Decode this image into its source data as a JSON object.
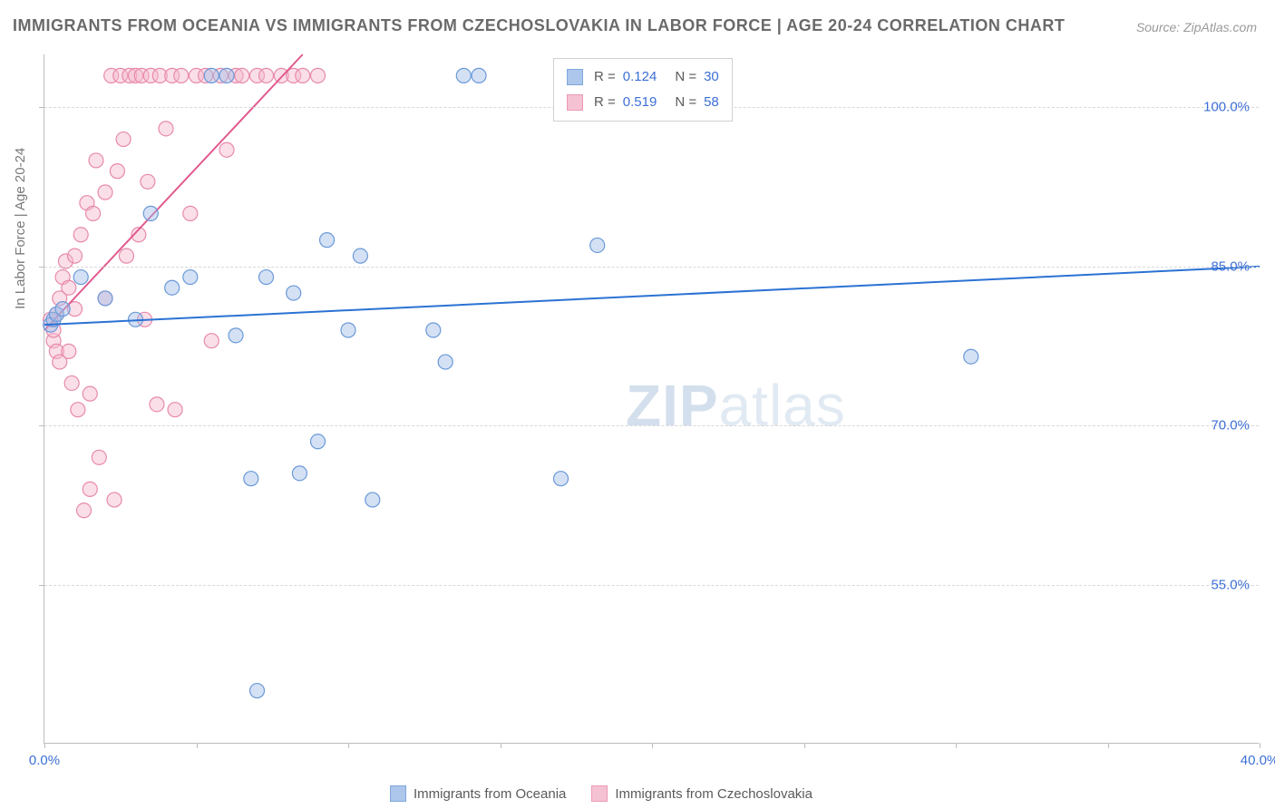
{
  "title": "IMMIGRANTS FROM OCEANIA VS IMMIGRANTS FROM CZECHOSLOVAKIA IN LABOR FORCE | AGE 20-24 CORRELATION CHART",
  "source": "Source: ZipAtlas.com",
  "ylabel": "In Labor Force | Age 20-24",
  "watermark": {
    "zip": "ZIP",
    "atlas": "atlas"
  },
  "chart": {
    "type": "scatter",
    "background_color": "#ffffff",
    "grid_color": "#d8d8d8",
    "border_color": "#bdbdbd",
    "xlim": [
      0,
      40
    ],
    "ylim": [
      40,
      105
    ],
    "xticks": [
      0,
      5,
      10,
      15,
      20,
      25,
      30,
      35,
      40
    ],
    "xtick_labels": {
      "0": "0.0%",
      "40": "40.0%"
    },
    "yticks": [
      55,
      70,
      85,
      100
    ],
    "ytick_labels": {
      "55": "55.0%",
      "70": "70.0%",
      "85": "85.0%",
      "100": "100.0%"
    },
    "marker_radius": 8,
    "marker_opacity": 0.45,
    "line_width": 2,
    "label_fontsize": 15,
    "tick_color": "#3d6fd6"
  },
  "series": {
    "oceania": {
      "label": "Immigrants from Oceania",
      "color_fill": "#9fbde8",
      "color_stroke": "#6a99d8",
      "trend_color": "#2b72d4",
      "r": "0.124",
      "n": "30",
      "trend": {
        "x1": 0,
        "y1": 79.5,
        "x2": 40,
        "y2": 85.0
      },
      "points": [
        [
          0.2,
          79.5
        ],
        [
          0.3,
          80.0
        ],
        [
          0.4,
          80.5
        ],
        [
          0.6,
          81.0
        ],
        [
          1.2,
          84.0
        ],
        [
          2.0,
          82.0
        ],
        [
          3.0,
          80.0
        ],
        [
          3.5,
          90.0
        ],
        [
          4.2,
          83.0
        ],
        [
          4.8,
          84.0
        ],
        [
          5.5,
          103.0
        ],
        [
          6.0,
          103.0
        ],
        [
          6.3,
          78.5
        ],
        [
          6.8,
          65.0
        ],
        [
          7.0,
          45.0
        ],
        [
          7.3,
          84.0
        ],
        [
          8.2,
          82.5
        ],
        [
          8.4,
          65.5
        ],
        [
          9.0,
          68.5
        ],
        [
          9.3,
          87.5
        ],
        [
          10.0,
          79.0
        ],
        [
          10.4,
          86.0
        ],
        [
          10.8,
          63.0
        ],
        [
          12.8,
          79.0
        ],
        [
          13.2,
          76.0
        ],
        [
          13.8,
          103.0
        ],
        [
          14.3,
          103.0
        ],
        [
          17.0,
          65.0
        ],
        [
          18.2,
          87.0
        ],
        [
          30.5,
          76.5
        ]
      ]
    },
    "czechoslovakia": {
      "label": "Immigrants from Czechoslovakia",
      "color_fill": "#f4b8cc",
      "color_stroke": "#e889ab",
      "trend_color": "#e15a8f",
      "r": "0.519",
      "n": "58",
      "trend": {
        "x1": 0,
        "y1": 79.0,
        "x2": 8.5,
        "y2": 105.0
      },
      "points": [
        [
          0.2,
          80.0
        ],
        [
          0.3,
          78.0
        ],
        [
          0.3,
          79.0
        ],
        [
          0.4,
          80.5
        ],
        [
          0.4,
          77.0
        ],
        [
          0.5,
          76.0
        ],
        [
          0.5,
          82.0
        ],
        [
          0.6,
          84.0
        ],
        [
          0.7,
          85.5
        ],
        [
          0.8,
          83.0
        ],
        [
          0.8,
          77.0
        ],
        [
          0.9,
          74.0
        ],
        [
          1.0,
          86.0
        ],
        [
          1.0,
          81.0
        ],
        [
          1.1,
          71.5
        ],
        [
          1.2,
          88.0
        ],
        [
          1.3,
          62.0
        ],
        [
          1.4,
          91.0
        ],
        [
          1.5,
          64.0
        ],
        [
          1.5,
          73.0
        ],
        [
          1.6,
          90.0
        ],
        [
          1.7,
          95.0
        ],
        [
          1.8,
          67.0
        ],
        [
          2.0,
          92.0
        ],
        [
          2.0,
          82.0
        ],
        [
          2.2,
          103.0
        ],
        [
          2.3,
          63.0
        ],
        [
          2.4,
          94.0
        ],
        [
          2.5,
          103.0
        ],
        [
          2.6,
          97.0
        ],
        [
          2.7,
          86.0
        ],
        [
          2.8,
          103.0
        ],
        [
          3.0,
          103.0
        ],
        [
          3.1,
          88.0
        ],
        [
          3.2,
          103.0
        ],
        [
          3.3,
          80.0
        ],
        [
          3.4,
          93.0
        ],
        [
          3.5,
          103.0
        ],
        [
          3.7,
          72.0
        ],
        [
          3.8,
          103.0
        ],
        [
          4.0,
          98.0
        ],
        [
          4.2,
          103.0
        ],
        [
          4.3,
          71.5
        ],
        [
          4.5,
          103.0
        ],
        [
          4.8,
          90.0
        ],
        [
          5.0,
          103.0
        ],
        [
          5.3,
          103.0
        ],
        [
          5.5,
          78.0
        ],
        [
          5.8,
          103.0
        ],
        [
          6.0,
          96.0
        ],
        [
          6.3,
          103.0
        ],
        [
          6.5,
          103.0
        ],
        [
          7.0,
          103.0
        ],
        [
          7.3,
          103.0
        ],
        [
          7.8,
          103.0
        ],
        [
          8.2,
          103.0
        ],
        [
          8.5,
          103.0
        ],
        [
          9.0,
          103.0
        ]
      ]
    }
  },
  "legend_top": {
    "r_label": "R =",
    "n_label": "N ="
  }
}
